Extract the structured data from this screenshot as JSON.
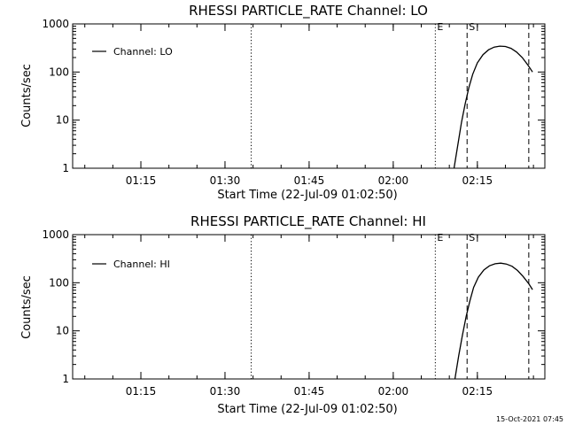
{
  "footer": {
    "timestamp": "15-Oct-2021 07:45"
  },
  "chart_data": [
    {
      "type": "line",
      "title": "RHESSI PARTICLE_RATE Channel: LO",
      "xlabel": "Start Time (22-Jul-09 01:02:50)",
      "ylabel": "Counts/sec",
      "y_scale": "log",
      "ylim": [
        1,
        1000
      ],
      "xlim_minutes": [
        0,
        84.2
      ],
      "x_tick_labels": [
        "01:15",
        "01:30",
        "01:45",
        "02:00",
        "02:15"
      ],
      "y_tick_labels": [
        "1",
        "10",
        "100",
        "1000"
      ],
      "legend": {
        "entries": [
          "Channel: LO"
        ],
        "position": "top-left"
      },
      "markers": [
        {
          "label": "",
          "time": "01:34:40",
          "style": "dotted"
        },
        {
          "label": "E",
          "time": "02:07:30",
          "style": "dotted"
        },
        {
          "label": "S",
          "time": "02:13:10",
          "style": "dashed"
        },
        {
          "label": "",
          "time": "02:24:10",
          "style": "dashed"
        }
      ],
      "series": [
        {
          "name": "Channel: LO",
          "x": [
            "02:10:50",
            "02:11:30",
            "02:12:10",
            "02:12:50",
            "02:13:30",
            "02:14:10",
            "02:15:00",
            "02:16:00",
            "02:17:00",
            "02:18:00",
            "02:19:00",
            "02:20:00",
            "02:21:00",
            "02:22:00",
            "02:23:00",
            "02:24:00",
            "02:24:50"
          ],
          "y": [
            1,
            3,
            9,
            22,
            48,
            90,
            155,
            230,
            290,
            330,
            345,
            340,
            310,
            260,
            200,
            140,
            100
          ]
        }
      ]
    },
    {
      "type": "line",
      "title": "RHESSI PARTICLE_RATE Channel: HI",
      "xlabel": "Start Time (22-Jul-09 01:02:50)",
      "ylabel": "Counts/sec",
      "y_scale": "log",
      "ylim": [
        1,
        1000
      ],
      "xlim_minutes": [
        0,
        84.2
      ],
      "x_tick_labels": [
        "01:15",
        "01:30",
        "01:45",
        "02:00",
        "02:15"
      ],
      "y_tick_labels": [
        "1",
        "10",
        "100",
        "1000"
      ],
      "legend": {
        "entries": [
          "Channel: HI"
        ],
        "position": "top-left"
      },
      "markers": [
        {
          "label": "",
          "time": "01:34:40",
          "style": "dotted"
        },
        {
          "label": "E",
          "time": "02:07:30",
          "style": "dotted"
        },
        {
          "label": "S",
          "time": "02:13:10",
          "style": "dashed"
        },
        {
          "label": "",
          "time": "02:24:10",
          "style": "dashed"
        }
      ],
      "series": [
        {
          "name": "Channel: HI",
          "x": [
            "02:11:00",
            "02:11:40",
            "02:12:20",
            "02:13:00",
            "02:13:40",
            "02:14:20",
            "02:15:10",
            "02:16:10",
            "02:17:10",
            "02:18:10",
            "02:19:10",
            "02:20:10",
            "02:21:10",
            "02:22:10",
            "02:23:10",
            "02:24:10",
            "02:24:50"
          ],
          "y": [
            1,
            3,
            8,
            20,
            42,
            80,
            130,
            185,
            225,
            248,
            255,
            245,
            220,
            180,
            135,
            95,
            72
          ]
        }
      ]
    }
  ]
}
